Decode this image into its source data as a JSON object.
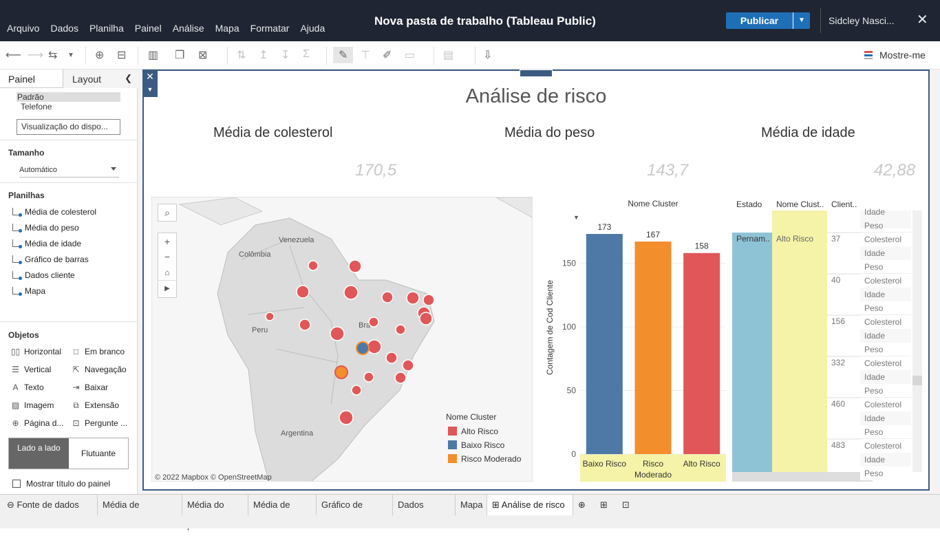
{
  "window": {
    "title": "Nova pasta de trabalho (Tableau Public)",
    "publish": "Publicar",
    "user": "Sidcley Nasci...",
    "close": "✕"
  },
  "menu": [
    "Arquivo",
    "Dados",
    "Planilha",
    "Painel",
    "Análise",
    "Mapa",
    "Formatar",
    "Ajuda"
  ],
  "toolbar": {
    "show_me": "Mostre-me"
  },
  "sidebar": {
    "tab_painel": "Painel",
    "tab_layout": "Layout",
    "devices": [
      "Padrão",
      "Telefone"
    ],
    "device_preview": "Visualização do dispo...",
    "size_label": "Tamanho",
    "size_value": "Automático",
    "sheets_label": "Planilhas",
    "sheets": [
      "Média de colesterol",
      "Média do peso",
      "Média de idade",
      "Gráfico de barras",
      "Dados cliente",
      "Mapa"
    ],
    "objects_label": "Objetos",
    "objects": [
      "Horizontal",
      "Em branco",
      "Vertical",
      "Navegação",
      "Texto",
      "Baixar",
      "Imagem",
      "Extensão",
      "Página d...",
      "Pergunte ..."
    ],
    "layout_tiled": "Lado a lado",
    "layout_floating": "Flutuante",
    "show_title": "Mostrar título do painel"
  },
  "dashboard": {
    "title": "Análise de risco",
    "kpis": [
      {
        "title": "Média de colesterol",
        "value": "170,5"
      },
      {
        "title": "Média do peso",
        "value": "143,7"
      },
      {
        "title": "Média de idade",
        "value": "42,88"
      }
    ],
    "map": {
      "labels": [
        "Venezuela",
        "Colômbia",
        "Peru",
        "Bra",
        "Argentina"
      ],
      "credit": "© 2022 Mapbox  © OpenStreetMap",
      "legend_title": "Nome Cluster",
      "legend": [
        {
          "label": "Alto Risco",
          "color": "#e15759"
        },
        {
          "label": "Baixo Risco",
          "color": "#4e79a7"
        },
        {
          "label": "Risco Moderado",
          "color": "#f28e2b"
        }
      ]
    },
    "table": {
      "headers": [
        "Estado",
        "Nome Clust..",
        "Client.."
      ],
      "estado": "Pernam..",
      "cluster": "Alto Risco",
      "ids": [
        "37",
        "40",
        "156",
        "332",
        "460",
        "483"
      ],
      "top_measures": [
        "Idade",
        "Peso"
      ],
      "measures": [
        "Colesterol",
        "Idade",
        "Peso"
      ]
    }
  },
  "chart_data": {
    "type": "bar",
    "title": "Nome Cluster",
    "categories": [
      "Baixo Risco",
      "Risco Moderado",
      "Alto Risco"
    ],
    "values": [
      173,
      167,
      158
    ],
    "colors": [
      "#4e79a7",
      "#f28e2b",
      "#e15759"
    ],
    "ylabel": "Contagem de Cod Cliente",
    "ylim": [
      0,
      173
    ],
    "yticks": [
      0,
      50,
      100,
      150
    ],
    "grid": true
  },
  "bottom_tabs": [
    "Fonte de dados",
    "Média de colesterol",
    "Média do peso",
    "Média de idade",
    "Gráfico de barras",
    "Dados cliente",
    "Mapa",
    "Análise de risco"
  ]
}
